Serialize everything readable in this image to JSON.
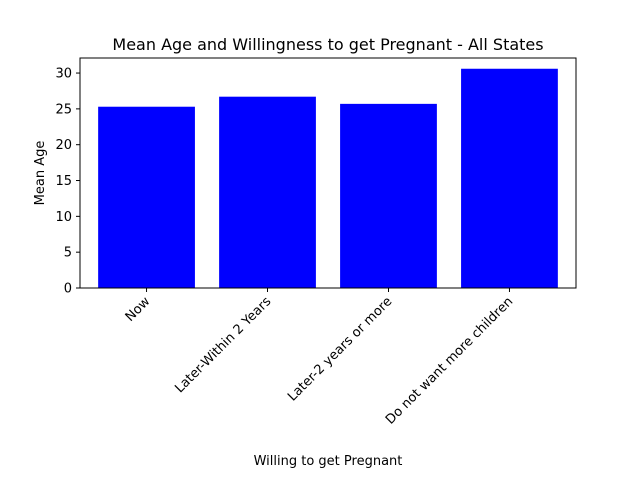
{
  "chart_data": {
    "type": "bar",
    "title": "Mean Age and Willingness to get Pregnant - All States",
    "xlabel": "Willing to get Pregnant",
    "ylabel": "Mean Age",
    "categories": [
      "Now",
      "Later-Within 2 Years",
      "Later-2 years or more",
      "Do not want more children"
    ],
    "values": [
      25.3,
      26.7,
      25.7,
      30.6
    ],
    "ylim": [
      0,
      32.1
    ],
    "yticks": [
      0,
      5,
      10,
      15,
      20,
      25,
      30
    ],
    "bar_color": "#0000ff",
    "grid": false,
    "legend": "none"
  }
}
